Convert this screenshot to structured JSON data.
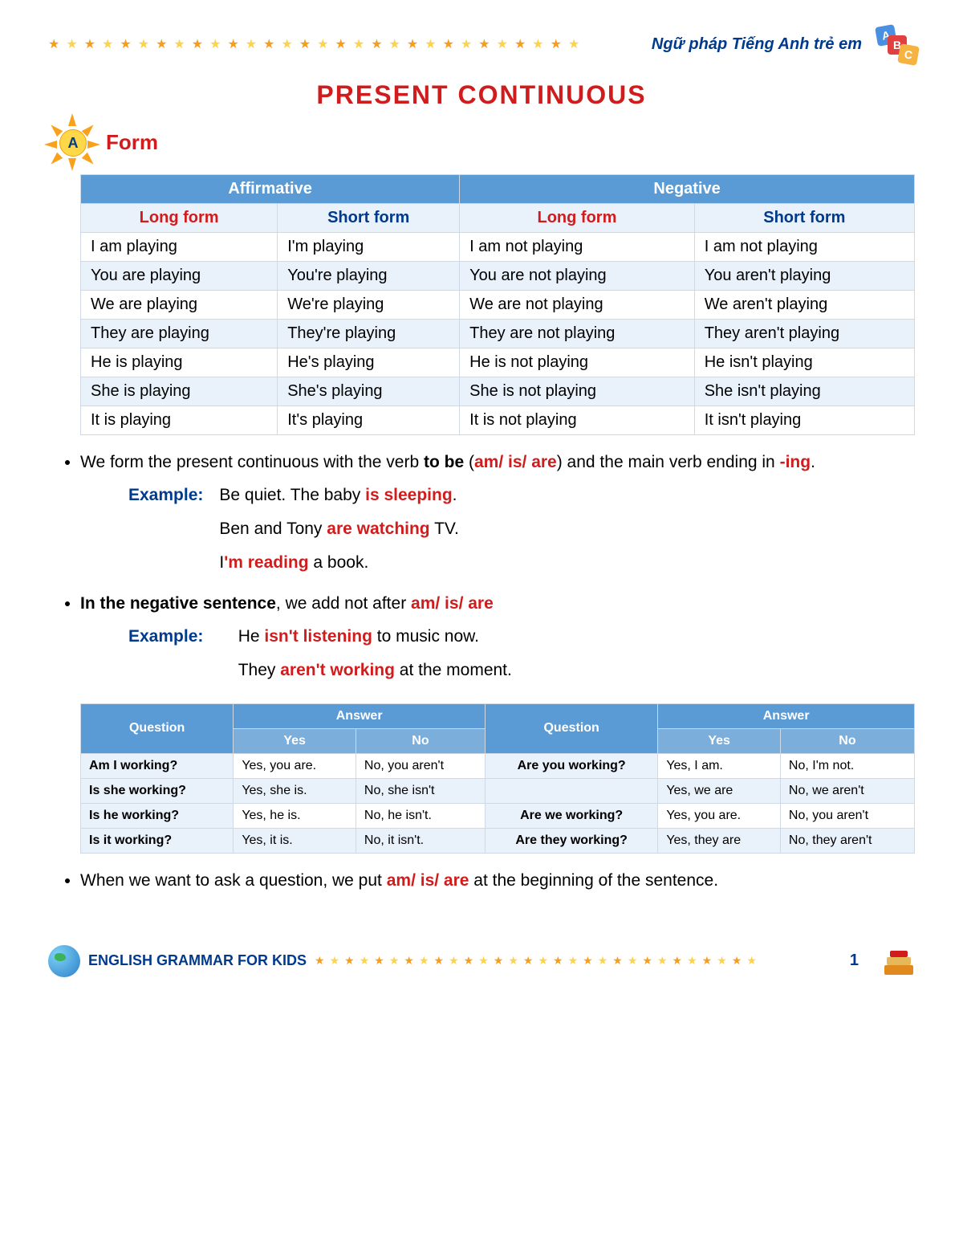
{
  "header": {
    "subtitle": "Ngữ pháp Tiếng Anh trẻ em",
    "star_colors": [
      "#f79d1e",
      "#fbd34d"
    ]
  },
  "title": "PRESENT CONTINUOUS",
  "sectionA": {
    "letter": "A",
    "title": "Form"
  },
  "table1": {
    "headers": {
      "aff": "Affirmative",
      "neg": "Negative",
      "long": "Long form",
      "short": "Short form"
    },
    "rows": [
      [
        "I am playing",
        "I'm playing",
        "I am not playing",
        "I am not playing"
      ],
      [
        "You are playing",
        "You're playing",
        "You are not playing",
        "You aren't playing"
      ],
      [
        "We are playing",
        "We're playing",
        "We are not playing",
        "We aren't playing"
      ],
      [
        "They are playing",
        "They're playing",
        "They are not playing",
        "They aren't playing"
      ],
      [
        "He is playing",
        "He's playing",
        "He is not playing",
        "He isn't playing"
      ],
      [
        "She is playing",
        "She's playing",
        "She is not playing",
        "She isn't playing"
      ],
      [
        "It is playing",
        "It's playing",
        "It is not playing",
        "It isn't playing"
      ]
    ]
  },
  "notes1": {
    "text1a": "We form the present continuous with the verb ",
    "text1b": "to be",
    "text1c": " (",
    "text1d": "am/ is/ are",
    "text1e": ") and the main verb ending in ",
    "text1f": "-ing",
    "text1g": ".",
    "exLabel": "Example:",
    "ex1a": "Be quiet. The baby ",
    "ex1b": "is sleeping",
    "ex1c": ".",
    "ex2a": "Ben and Tony ",
    "ex2b": "are watching",
    "ex2c": " TV.",
    "ex3a": "I",
    "ex3b": "'m reading",
    "ex3c": " a book.",
    "text2a": "In the negative sentence",
    "text2b": ", we add not after ",
    "text2c": "am/ is/ are",
    "ex4a": "He ",
    "ex4b": "isn't listening",
    "ex4c": " to music now.",
    "ex5a": "They ",
    "ex5b": "aren't working",
    "ex5c": " at the moment."
  },
  "table2": {
    "headers": {
      "q": "Question",
      "a": "Answer",
      "yes": "Yes",
      "no": "No"
    },
    "rows": [
      [
        "Am I working?",
        "Yes, you are.",
        "No, you aren't",
        "Are you working?",
        "Yes, I am.",
        "No, I'm not."
      ],
      [
        "Is she working?",
        "Yes, she is.",
        "No, she isn't",
        "",
        "Yes, we are",
        "No, we aren't"
      ],
      [
        "Is he working?",
        "Yes, he is.",
        "No, he isn't.",
        "Are we working?",
        "Yes, you are.",
        "No, you aren't"
      ],
      [
        "Is it working?",
        "Yes, it is.",
        "No, it isn't.",
        "Are they working?",
        "Yes, they are",
        "No, they aren't"
      ]
    ]
  },
  "notes2": {
    "text1a": "When we want to ask a question, we put ",
    "text1b": "am/ is/ are",
    "text1c": " at the beginning of the sentence."
  },
  "footer": {
    "label": "ENGLISH GRAMMAR FOR KIDS",
    "page": "1"
  },
  "colors": {
    "header_bg": "#5b9bd5",
    "subhead_bg": "#e9f1fb",
    "red": "#d01c1c",
    "blue": "#003a8c",
    "border": "#cfd9e6"
  }
}
